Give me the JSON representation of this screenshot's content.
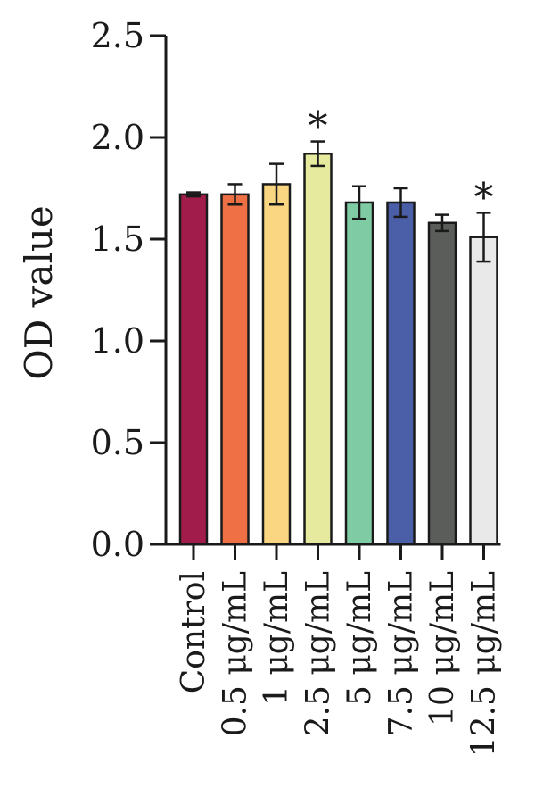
{
  "chart_data": {
    "type": "bar",
    "ylabel": "OD value",
    "ylim": [
      0,
      2.5
    ],
    "yticks": [
      "0.0",
      "0.5",
      "1.0",
      "1.5",
      "2.0",
      "2.5"
    ],
    "categories": [
      "Control",
      "0.5 μg/mL",
      "1 μg/mL",
      "2.5 μg/mL",
      "5 μg/mL",
      "7.5 μg/mL",
      "10 μg/mL",
      "12.5 μg/mL"
    ],
    "values": [
      1.72,
      1.72,
      1.77,
      1.92,
      1.68,
      1.68,
      1.58,
      1.51
    ],
    "errors": [
      0.01,
      0.05,
      0.1,
      0.06,
      0.08,
      0.07,
      0.04,
      0.12
    ],
    "significance": [
      "",
      "",
      "",
      "*",
      "",
      "",
      "",
      "*"
    ],
    "colors": [
      "#a21c4b",
      "#ee7044",
      "#fad683",
      "#e6ea9e",
      "#7fcba4",
      "#4a5fa8",
      "#5a5d5a",
      "#e9e9e9"
    ]
  }
}
